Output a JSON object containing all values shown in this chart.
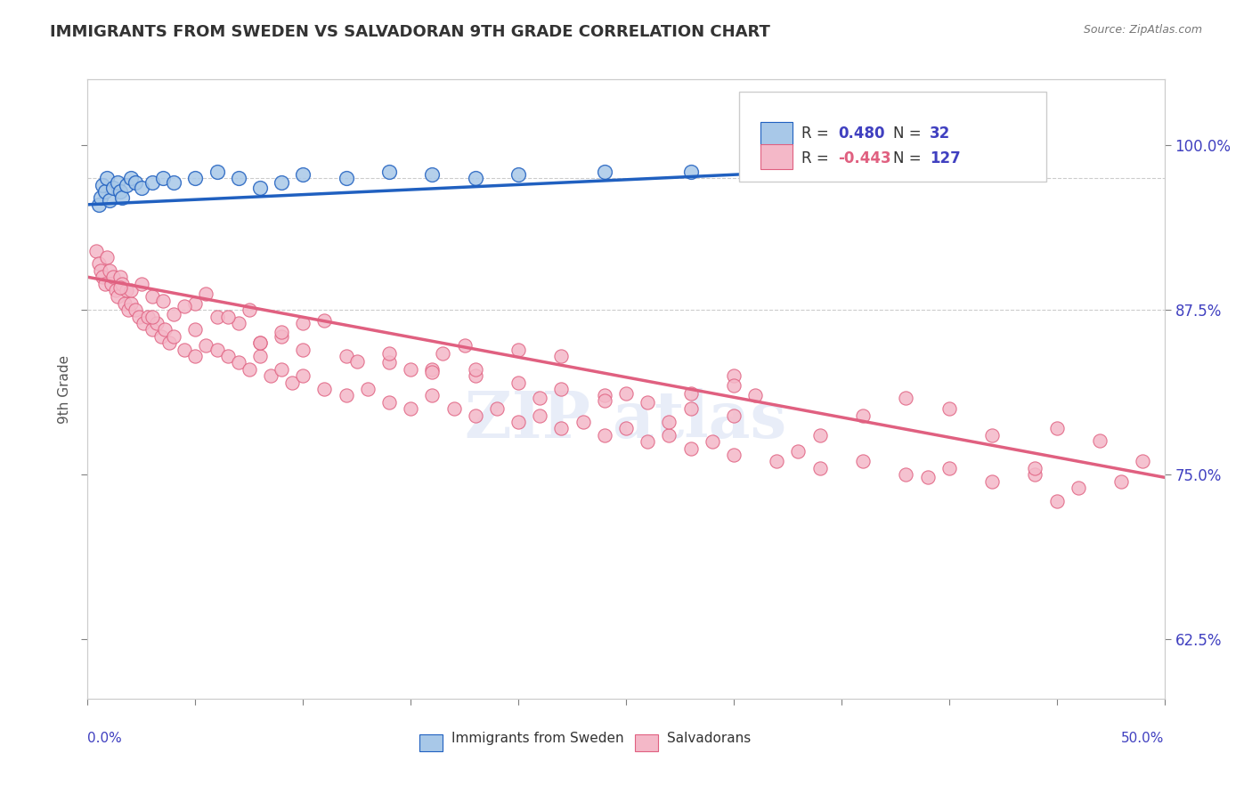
{
  "title": "IMMIGRANTS FROM SWEDEN VS SALVADORAN 9TH GRADE CORRELATION CHART",
  "source": "Source: ZipAtlas.com",
  "ylabel": "9th Grade",
  "y_tick_labels": [
    "62.5%",
    "75.0%",
    "87.5%",
    "100.0%"
  ],
  "y_tick_values": [
    0.625,
    0.75,
    0.875,
    1.0
  ],
  "xlim": [
    0.0,
    0.5
  ],
  "ylim": [
    0.58,
    1.05
  ],
  "blue_color": "#a8c8e8",
  "pink_color": "#f4b8c8",
  "blue_line_color": "#2060c0",
  "pink_line_color": "#e06080",
  "title_color": "#333333",
  "axis_label_color": "#4040c0",
  "legend_label_blue": "Immigrants from Sweden",
  "legend_label_pink": "Salvadorans",
  "blue_scatter_x": [
    0.005,
    0.006,
    0.007,
    0.008,
    0.009,
    0.01,
    0.012,
    0.014,
    0.015,
    0.016,
    0.018,
    0.02,
    0.022,
    0.025,
    0.03,
    0.035,
    0.04,
    0.05,
    0.06,
    0.07,
    0.08,
    0.09,
    0.1,
    0.12,
    0.14,
    0.16,
    0.18,
    0.2,
    0.24,
    0.28,
    0.32,
    0.37
  ],
  "blue_scatter_y": [
    0.955,
    0.96,
    0.97,
    0.965,
    0.975,
    0.958,
    0.968,
    0.972,
    0.965,
    0.96,
    0.97,
    0.975,
    0.972,
    0.968,
    0.972,
    0.975,
    0.972,
    0.975,
    0.98,
    0.975,
    0.968,
    0.972,
    0.978,
    0.975,
    0.98,
    0.978,
    0.975,
    0.978,
    0.98,
    0.98,
    0.982,
    0.982
  ],
  "pink_scatter_x": [
    0.004,
    0.005,
    0.006,
    0.007,
    0.008,
    0.009,
    0.01,
    0.011,
    0.012,
    0.013,
    0.014,
    0.015,
    0.016,
    0.017,
    0.018,
    0.019,
    0.02,
    0.022,
    0.024,
    0.026,
    0.028,
    0.03,
    0.032,
    0.034,
    0.036,
    0.038,
    0.04,
    0.045,
    0.05,
    0.055,
    0.06,
    0.065,
    0.07,
    0.075,
    0.08,
    0.085,
    0.09,
    0.095,
    0.1,
    0.11,
    0.12,
    0.13,
    0.14,
    0.15,
    0.16,
    0.17,
    0.18,
    0.19,
    0.2,
    0.21,
    0.22,
    0.23,
    0.24,
    0.25,
    0.26,
    0.27,
    0.28,
    0.29,
    0.3,
    0.32,
    0.34,
    0.36,
    0.38,
    0.4,
    0.42,
    0.44,
    0.46,
    0.48,
    0.03,
    0.05,
    0.08,
    0.1,
    0.12,
    0.14,
    0.16,
    0.18,
    0.2,
    0.22,
    0.24,
    0.26,
    0.28,
    0.3,
    0.05,
    0.1,
    0.2,
    0.3,
    0.4,
    0.03,
    0.06,
    0.09,
    0.15,
    0.21,
    0.27,
    0.33,
    0.39,
    0.45,
    0.02,
    0.04,
    0.08,
    0.16,
    0.24,
    0.34,
    0.44,
    0.035,
    0.07,
    0.14,
    0.28,
    0.42,
    0.025,
    0.075,
    0.175,
    0.3,
    0.45,
    0.045,
    0.09,
    0.18,
    0.36,
    0.49,
    0.055,
    0.11,
    0.22,
    0.38,
    0.015,
    0.065,
    0.165,
    0.31,
    0.47,
    0.125,
    0.25
  ],
  "pink_scatter_y": [
    0.92,
    0.91,
    0.905,
    0.9,
    0.895,
    0.915,
    0.905,
    0.895,
    0.9,
    0.89,
    0.885,
    0.9,
    0.895,
    0.88,
    0.89,
    0.875,
    0.88,
    0.875,
    0.87,
    0.865,
    0.87,
    0.86,
    0.865,
    0.855,
    0.86,
    0.85,
    0.855,
    0.845,
    0.84,
    0.848,
    0.845,
    0.84,
    0.835,
    0.83,
    0.84,
    0.825,
    0.83,
    0.82,
    0.825,
    0.815,
    0.81,
    0.815,
    0.805,
    0.8,
    0.81,
    0.8,
    0.795,
    0.8,
    0.79,
    0.795,
    0.785,
    0.79,
    0.78,
    0.785,
    0.775,
    0.78,
    0.77,
    0.775,
    0.765,
    0.76,
    0.755,
    0.76,
    0.75,
    0.755,
    0.745,
    0.75,
    0.74,
    0.745,
    0.87,
    0.86,
    0.85,
    0.845,
    0.84,
    0.835,
    0.83,
    0.825,
    0.82,
    0.815,
    0.81,
    0.805,
    0.8,
    0.795,
    0.88,
    0.865,
    0.845,
    0.825,
    0.8,
    0.885,
    0.87,
    0.855,
    0.83,
    0.808,
    0.79,
    0.768,
    0.748,
    0.73,
    0.89,
    0.872,
    0.85,
    0.828,
    0.806,
    0.78,
    0.755,
    0.882,
    0.865,
    0.842,
    0.812,
    0.78,
    0.895,
    0.875,
    0.848,
    0.818,
    0.785,
    0.878,
    0.858,
    0.83,
    0.795,
    0.76,
    0.887,
    0.867,
    0.84,
    0.808,
    0.892,
    0.87,
    0.842,
    0.81,
    0.776,
    0.836,
    0.812
  ],
  "blue_trendline_x": [
    0.0,
    0.37
  ],
  "blue_trendline_y": [
    0.955,
    0.983
  ],
  "pink_trendline_x": [
    0.0,
    0.5
  ],
  "pink_trendline_y": [
    0.9,
    0.748
  ],
  "dashed_line_y1": 0.975,
  "dashed_line_y2": 0.875,
  "background_color": "#ffffff",
  "grid_color": "#cccccc"
}
